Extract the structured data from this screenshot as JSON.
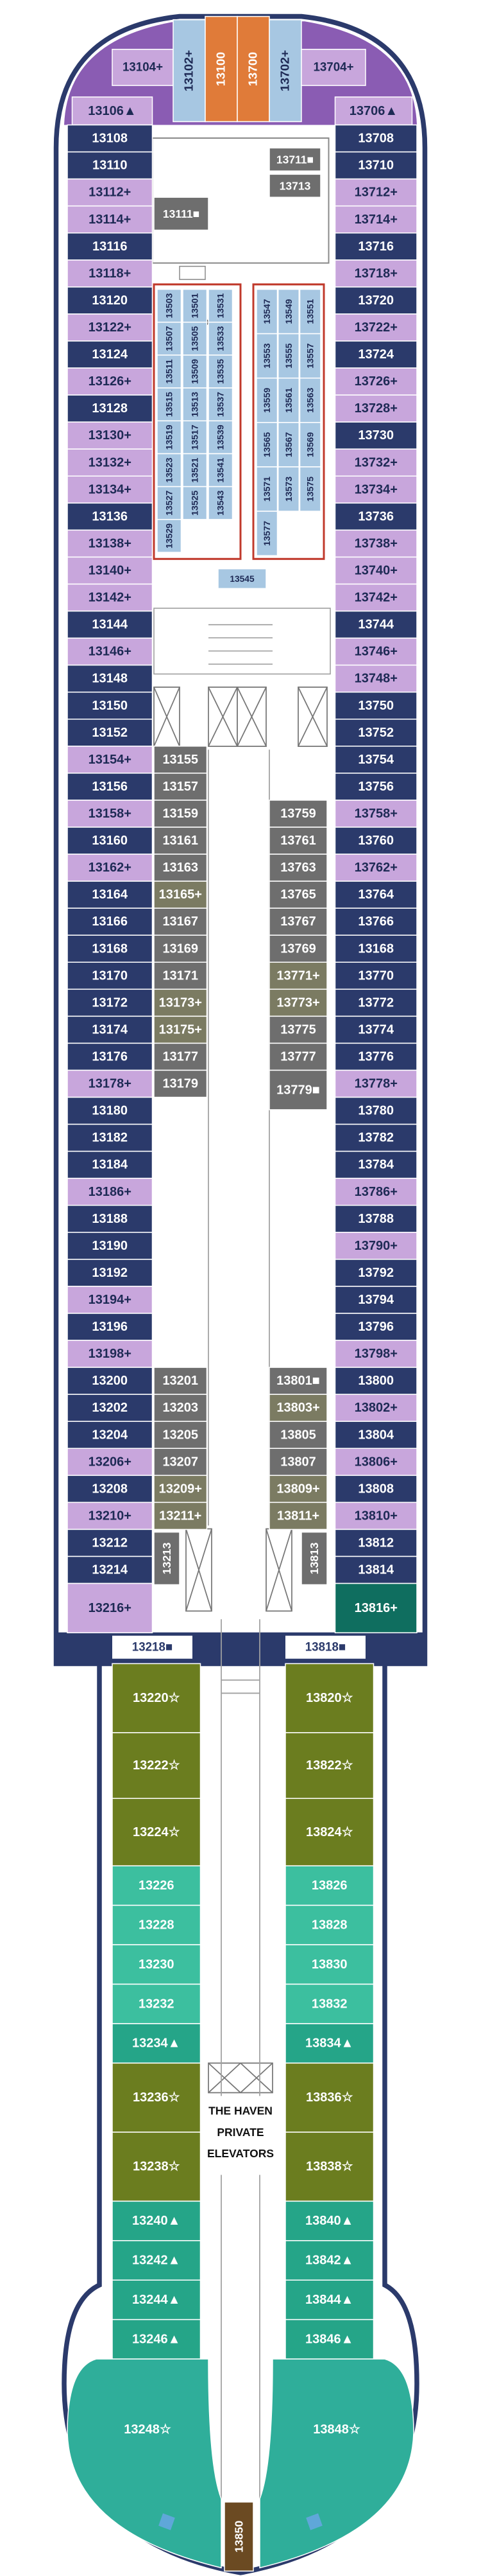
{
  "top_cabins": [
    {
      "label": "13104+",
      "color": "#c8a6dc"
    },
    {
      "label": "13102+",
      "color": "#a7c7e2"
    },
    {
      "label": "13100",
      "color": "#e07b39"
    },
    {
      "label": "13700",
      "color": "#e07b39"
    },
    {
      "label": "13702+",
      "color": "#a7c7e2"
    },
    {
      "label": "13704+",
      "color": "#c8a6dc"
    }
  ],
  "left_column": [
    {
      "label": "13106▲",
      "color": "#c8a6dc"
    },
    {
      "label": "13108",
      "color": "#2b3a6b"
    },
    {
      "label": "13110",
      "color": "#2b3a6b"
    },
    {
      "label": "13112+",
      "color": "#c8a6dc"
    },
    {
      "label": "13114+",
      "color": "#c8a6dc"
    },
    {
      "label": "13116",
      "color": "#2b3a6b"
    },
    {
      "label": "13118+",
      "color": "#c8a6dc"
    },
    {
      "label": "13120",
      "color": "#2b3a6b"
    },
    {
      "label": "13122+",
      "color": "#c8a6dc"
    },
    {
      "label": "13124",
      "color": "#2b3a6b"
    },
    {
      "label": "13126+",
      "color": "#c8a6dc"
    },
    {
      "label": "13128",
      "color": "#2b3a6b"
    },
    {
      "label": "13130+",
      "color": "#c8a6dc"
    },
    {
      "label": "13132+",
      "color": "#c8a6dc"
    },
    {
      "label": "13134+",
      "color": "#c8a6dc"
    },
    {
      "label": "13136",
      "color": "#2b3a6b"
    },
    {
      "label": "13138+",
      "color": "#c8a6dc"
    },
    {
      "label": "13140+",
      "color": "#c8a6dc"
    },
    {
      "label": "13142+",
      "color": "#c8a6dc"
    },
    {
      "label": "13144",
      "color": "#2b3a6b"
    },
    {
      "label": "13146+",
      "color": "#c8a6dc"
    },
    {
      "label": "13148",
      "color": "#2b3a6b"
    },
    {
      "label": "13150",
      "color": "#2b3a6b"
    },
    {
      "label": "13152",
      "color": "#2b3a6b"
    },
    {
      "label": "13154+",
      "color": "#c8a6dc"
    },
    {
      "label": "13156",
      "color": "#2b3a6b"
    },
    {
      "label": "13158+",
      "color": "#c8a6dc"
    },
    {
      "label": "13160",
      "color": "#2b3a6b"
    },
    {
      "label": "13162+",
      "color": "#c8a6dc"
    },
    {
      "label": "13164",
      "color": "#2b3a6b"
    },
    {
      "label": "13166",
      "color": "#2b3a6b"
    },
    {
      "label": "13168",
      "color": "#2b3a6b"
    },
    {
      "label": "13170",
      "color": "#2b3a6b"
    },
    {
      "label": "13172",
      "color": "#2b3a6b"
    },
    {
      "label": "13174",
      "color": "#2b3a6b"
    },
    {
      "label": "13176",
      "color": "#2b3a6b"
    },
    {
      "label": "13178+",
      "color": "#c8a6dc"
    },
    {
      "label": "13180",
      "color": "#2b3a6b"
    },
    {
      "label": "13182",
      "color": "#2b3a6b"
    },
    {
      "label": "13184",
      "color": "#2b3a6b"
    },
    {
      "label": "13186+",
      "color": "#c8a6dc"
    },
    {
      "label": "13188",
      "color": "#2b3a6b"
    },
    {
      "label": "13190",
      "color": "#2b3a6b"
    },
    {
      "label": "13192",
      "color": "#2b3a6b"
    },
    {
      "label": "13194+",
      "color": "#c8a6dc"
    },
    {
      "label": "13196",
      "color": "#2b3a6b"
    },
    {
      "label": "13198+",
      "color": "#c8a6dc"
    },
    {
      "label": "13200",
      "color": "#2b3a6b"
    },
    {
      "label": "13202",
      "color": "#2b3a6b"
    },
    {
      "label": "13204",
      "color": "#2b3a6b"
    },
    {
      "label": "13206+",
      "color": "#c8a6dc"
    },
    {
      "label": "13208",
      "color": "#2b3a6b"
    },
    {
      "label": "13210+",
      "color": "#c8a6dc"
    },
    {
      "label": "13212",
      "color": "#2b3a6b"
    },
    {
      "label": "13214",
      "color": "#2b3a6b"
    },
    {
      "label": "13216+",
      "color": "#c8a6dc"
    }
  ],
  "right_column": [
    {
      "label": "13706▲",
      "color": "#c8a6dc"
    },
    {
      "label": "13708",
      "color": "#2b3a6b"
    },
    {
      "label": "13710",
      "color": "#2b3a6b"
    },
    {
      "label": "13712+",
      "color": "#c8a6dc"
    },
    {
      "label": "13714+",
      "color": "#c8a6dc"
    },
    {
      "label": "13716",
      "color": "#2b3a6b"
    },
    {
      "label": "13718+",
      "color": "#c8a6dc"
    },
    {
      "label": "13720",
      "color": "#2b3a6b"
    },
    {
      "label": "13722+",
      "color": "#c8a6dc"
    },
    {
      "label": "13724",
      "color": "#2b3a6b"
    },
    {
      "label": "13726+",
      "color": "#c8a6dc"
    },
    {
      "label": "13728+",
      "color": "#c8a6dc"
    },
    {
      "label": "13730",
      "color": "#2b3a6b"
    },
    {
      "label": "13732+",
      "color": "#c8a6dc"
    },
    {
      "label": "13734+",
      "color": "#c8a6dc"
    },
    {
      "label": "13736",
      "color": "#2b3a6b"
    },
    {
      "label": "13738+",
      "color": "#c8a6dc"
    },
    {
      "label": "13740+",
      "color": "#c8a6dc"
    },
    {
      "label": "13742+",
      "color": "#c8a6dc"
    },
    {
      "label": "13744",
      "color": "#2b3a6b"
    },
    {
      "label": "13746+",
      "color": "#c8a6dc"
    },
    {
      "label": "13748+",
      "color": "#c8a6dc"
    },
    {
      "label": "13750",
      "color": "#2b3a6b"
    },
    {
      "label": "13752",
      "color": "#2b3a6b"
    },
    {
      "label": "13754",
      "color": "#2b3a6b"
    },
    {
      "label": "13756",
      "color": "#2b3a6b"
    },
    {
      "label": "13758+",
      "color": "#c8a6dc"
    },
    {
      "label": "13760",
      "color": "#2b3a6b"
    },
    {
      "label": "13762+",
      "color": "#c8a6dc"
    },
    {
      "label": "13764",
      "color": "#2b3a6b"
    },
    {
      "label": "13766",
      "color": "#2b3a6b"
    },
    {
      "label": "13168",
      "color": "#2b3a6b"
    },
    {
      "label": "13770",
      "color": "#2b3a6b"
    },
    {
      "label": "13772",
      "color": "#2b3a6b"
    },
    {
      "label": "13774",
      "color": "#2b3a6b"
    },
    {
      "label": "13776",
      "color": "#2b3a6b"
    },
    {
      "label": "13778+",
      "color": "#c8a6dc"
    },
    {
      "label": "13780",
      "color": "#2b3a6b"
    },
    {
      "label": "13782",
      "color": "#2b3a6b"
    },
    {
      "label": "13784",
      "color": "#2b3a6b"
    },
    {
      "label": "13786+",
      "color": "#c8a6dc"
    },
    {
      "label": "13788",
      "color": "#2b3a6b"
    },
    {
      "label": "13790+",
      "color": "#c8a6dc"
    },
    {
      "label": "13792",
      "color": "#2b3a6b"
    },
    {
      "label": "13794",
      "color": "#2b3a6b"
    },
    {
      "label": "13796",
      "color": "#2b3a6b"
    },
    {
      "label": "13798+",
      "color": "#c8a6dc"
    },
    {
      "label": "13800",
      "color": "#2b3a6b"
    },
    {
      "label": "13802+",
      "color": "#c8a6dc"
    },
    {
      "label": "13804",
      "color": "#2b3a6b"
    },
    {
      "label": "13806+",
      "color": "#c8a6dc"
    },
    {
      "label": "13808",
      "color": "#2b3a6b"
    },
    {
      "label": "13810+",
      "color": "#c8a6dc"
    },
    {
      "label": "13812",
      "color": "#2b3a6b"
    },
    {
      "label": "13814",
      "color": "#2b3a6b"
    },
    {
      "label": "13816+",
      "color": "#0f6e5f"
    }
  ],
  "inner_rooms": [
    {
      "label": "13711■",
      "color": "#6e6e6e"
    },
    {
      "label": "13713",
      "color": "#6e6e6e"
    },
    {
      "label": "13111■",
      "color": "#6e6e6e"
    }
  ],
  "suites_left": [
    {
      "label": "13503",
      "color": "#a7c7e2"
    },
    {
      "label": "13501",
      "color": "#a7c7e2"
    },
    {
      "label": "13531",
      "color": "#a7c7e2"
    },
    {
      "label": "13507",
      "color": "#a7c7e2"
    },
    {
      "label": "13505",
      "color": "#a7c7e2"
    },
    {
      "label": "13533",
      "color": "#a7c7e2"
    },
    {
      "label": "13511",
      "color": "#a7c7e2"
    },
    {
      "label": "13509",
      "color": "#a7c7e2"
    },
    {
      "label": "13535",
      "color": "#a7c7e2"
    },
    {
      "label": "13515",
      "color": "#a7c7e2"
    },
    {
      "label": "13513",
      "color": "#a7c7e2"
    },
    {
      "label": "13537",
      "color": "#a7c7e2"
    },
    {
      "label": "13519",
      "color": "#a7c7e2"
    },
    {
      "label": "13517",
      "color": "#a7c7e2"
    },
    {
      "label": "13539",
      "color": "#a7c7e2"
    },
    {
      "label": "13523",
      "color": "#a7c7e2"
    },
    {
      "label": "13521",
      "color": "#a7c7e2"
    },
    {
      "label": "13541",
      "color": "#a7c7e2"
    },
    {
      "label": "13527",
      "color": "#a7c7e2"
    },
    {
      "label": "13525",
      "color": "#a7c7e2"
    },
    {
      "label": "13543",
      "color": "#a7c7e2"
    },
    {
      "label": "13529",
      "color": "#a7c7e2"
    }
  ],
  "suites_right": [
    {
      "label": "13547",
      "color": "#a7c7e2"
    },
    {
      "label": "13549",
      "color": "#a7c7e2"
    },
    {
      "label": "13551",
      "color": "#a7c7e2"
    },
    {
      "label": "13553",
      "color": "#a7c7e2"
    },
    {
      "label": "13555",
      "color": "#a7c7e2"
    },
    {
      "label": "13557",
      "color": "#a7c7e2"
    },
    {
      "label": "13559",
      "color": "#a7c7e2"
    },
    {
      "label": "13561",
      "color": "#a7c7e2"
    },
    {
      "label": "13563",
      "color": "#a7c7e2"
    },
    {
      "label": "13565",
      "color": "#a7c7e2"
    },
    {
      "label": "13567",
      "color": "#a7c7e2"
    },
    {
      "label": "13569",
      "color": "#a7c7e2"
    },
    {
      "label": "13571",
      "color": "#a7c7e2"
    },
    {
      "label": "13573",
      "color": "#a7c7e2"
    },
    {
      "label": "13575",
      "color": "#a7c7e2"
    },
    {
      "label": "13577",
      "color": "#a7c7e2"
    }
  ],
  "center_suite": {
    "label": "13545",
    "color": "#a7c7e2"
  },
  "mid_left": [
    {
      "label": "13155",
      "color": "#6e6e6e"
    },
    {
      "label": "13157",
      "color": "#6e6e6e"
    },
    {
      "label": "13159",
      "color": "#6e6e6e"
    },
    {
      "label": "13161",
      "color": "#6e6e6e"
    },
    {
      "label": "13163",
      "color": "#6e6e6e"
    },
    {
      "label": "13165+",
      "color": "#7b7b62"
    },
    {
      "label": "13167",
      "color": "#6e6e6e"
    },
    {
      "label": "13169",
      "color": "#6e6e6e"
    },
    {
      "label": "13171",
      "color": "#6e6e6e"
    },
    {
      "label": "13173+",
      "color": "#7b7b62"
    },
    {
      "label": "13175+",
      "color": "#7b7b62"
    },
    {
      "label": "13177",
      "color": "#6e6e6e"
    },
    {
      "label": "13179",
      "color": "#6e6e6e"
    }
  ],
  "mid_right": [
    {
      "label": "13759",
      "color": "#6e6e6e"
    },
    {
      "label": "13761",
      "color": "#6e6e6e"
    },
    {
      "label": "13763",
      "color": "#6e6e6e"
    },
    {
      "label": "13765",
      "color": "#6e6e6e"
    },
    {
      "label": "13767",
      "color": "#6e6e6e"
    },
    {
      "label": "13769",
      "color": "#6e6e6e"
    },
    {
      "label": "13771+",
      "color": "#7b7b62"
    },
    {
      "label": "13773+",
      "color": "#7b7b62"
    },
    {
      "label": "13775",
      "color": "#6e6e6e"
    },
    {
      "label": "13777",
      "color": "#6e6e6e"
    },
    {
      "label": "13779■",
      "color": "#6e6e6e"
    }
  ],
  "lower_left": [
    {
      "label": "13201",
      "color": "#6e6e6e"
    },
    {
      "label": "13203",
      "color": "#6e6e6e"
    },
    {
      "label": "13205",
      "color": "#6e6e6e"
    },
    {
      "label": "13207",
      "color": "#6e6e6e"
    },
    {
      "label": "13209+",
      "color": "#7b7b62"
    },
    {
      "label": "13211+",
      "color": "#7b7b62"
    },
    {
      "label": "13213",
      "color": "#6e6e6e"
    }
  ],
  "lower_right": [
    {
      "label": "13801■",
      "color": "#6e6e6e"
    },
    {
      "label": "13803+",
      "color": "#7b7b62"
    },
    {
      "label": "13805",
      "color": "#6e6e6e"
    },
    {
      "label": "13807",
      "color": "#6e6e6e"
    },
    {
      "label": "13809+",
      "color": "#7b7b62"
    },
    {
      "label": "13811+",
      "color": "#7b7b62"
    },
    {
      "label": "13813",
      "color": "#6e6e6e"
    }
  ],
  "end_labels": [
    "13218■",
    "13818■"
  ],
  "haven_left": [
    {
      "label": "13220☆",
      "color": "#6b7d1f"
    },
    {
      "label": "13222☆",
      "color": "#6b7d1f"
    },
    {
      "label": "13224☆",
      "color": "#6b7d1f"
    },
    {
      "label": "13226",
      "color": "#3cbf9f"
    },
    {
      "label": "13228",
      "color": "#3cbf9f"
    },
    {
      "label": "13230",
      "color": "#3cbf9f"
    },
    {
      "label": "13232",
      "color": "#3cbf9f"
    },
    {
      "label": "13234▲",
      "color": "#25a588"
    },
    {
      "label": "13236☆",
      "color": "#6b7d1f"
    },
    {
      "label": "13238☆",
      "color": "#6b7d1f"
    },
    {
      "label": "13240▲",
      "color": "#25a588"
    },
    {
      "label": "13242▲",
      "color": "#25a588"
    },
    {
      "label": "13244▲",
      "color": "#25a588"
    },
    {
      "label": "13246▲",
      "color": "#25a588"
    },
    {
      "label": "13248☆",
      "color": "#2fae9a"
    }
  ],
  "haven_right": [
    {
      "label": "13820☆",
      "color": "#6b7d1f"
    },
    {
      "label": "13822☆",
      "color": "#6b7d1f"
    },
    {
      "label": "13824☆",
      "color": "#6b7d1f"
    },
    {
      "label": "13826",
      "color": "#3cbf9f"
    },
    {
      "label": "13828",
      "color": "#3cbf9f"
    },
    {
      "label": "13830",
      "color": "#3cbf9f"
    },
    {
      "label": "13832",
      "color": "#3cbf9f"
    },
    {
      "label": "13834▲",
      "color": "#25a588"
    },
    {
      "label": "13836☆",
      "color": "#6b7d1f"
    },
    {
      "label": "13838☆",
      "color": "#6b7d1f"
    },
    {
      "label": "13840▲",
      "color": "#25a588"
    },
    {
      "label": "13842▲",
      "color": "#25a588"
    },
    {
      "label": "13844▲",
      "color": "#25a588"
    },
    {
      "label": "13846▲",
      "color": "#25a588"
    },
    {
      "label": "13848☆",
      "color": "#2fae9a"
    }
  ],
  "haven_elevators": [
    "THE HAVEN",
    "PRIVATE",
    "ELEVATORS"
  ],
  "aft_cabin": {
    "label": "13850",
    "color": "#6b4a22"
  }
}
